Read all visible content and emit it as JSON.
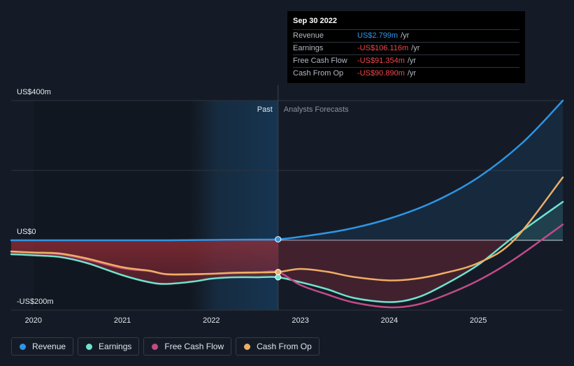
{
  "colors": {
    "background": "#151b26",
    "revenue": "#2d96e6",
    "earnings": "#6fe3cf",
    "free_cash_flow": "#c24b86",
    "cash_from_op": "#eeaf64",
    "negative": "#f3474d"
  },
  "tooltip": {
    "date": "Sep 30 2022",
    "rows": [
      {
        "label": "Revenue",
        "value": "US$2.799m",
        "unit": "/yr",
        "color": "#2d96e6"
      },
      {
        "label": "Earnings",
        "value": "-US$106.116m",
        "unit": "/yr",
        "color": "#f3474d"
      },
      {
        "label": "Free Cash Flow",
        "value": "-US$91.354m",
        "unit": "/yr",
        "color": "#f3474d"
      },
      {
        "label": "Cash From Op",
        "value": "-US$90.890m",
        "unit": "/yr",
        "color": "#f3474d"
      }
    ]
  },
  "chart_data": {
    "type": "line",
    "past_label": "Past",
    "forecast_label": "Analysts Forecasts",
    "y_tick_labels": [
      "US$400m",
      "US$0",
      "-US$200m"
    ],
    "y_tick_values": [
      400,
      0,
      -200
    ],
    "ylim": [
      -200,
      400
    ],
    "xlim": [
      2019.75,
      2025.95
    ],
    "x_tick_labels": [
      "2020",
      "2021",
      "2022",
      "2023",
      "2024",
      "2025"
    ],
    "x_tick_values": [
      2020,
      2021,
      2022,
      2023,
      2024,
      2025
    ],
    "divider_x": 2022.75,
    "series": [
      {
        "name": "Revenue",
        "color": "#2d96e6",
        "x": [
          2019.75,
          2020.5,
          2021.0,
          2021.5,
          2022.0,
          2022.5,
          2022.75,
          2023.0,
          2023.5,
          2024.0,
          2024.5,
          2025.0,
          2025.5,
          2025.95
        ],
        "y": [
          0,
          0,
          0,
          0,
          1,
          2,
          2.8,
          10,
          30,
          62,
          110,
          180,
          280,
          400
        ]
      },
      {
        "name": "Earnings",
        "color": "#6fe3cf",
        "x": [
          2019.75,
          2020.0,
          2020.3,
          2020.6,
          2021.0,
          2021.3,
          2021.5,
          2021.8,
          2022.0,
          2022.25,
          2022.5,
          2022.75,
          2023.0,
          2023.3,
          2023.6,
          2024.0,
          2024.3,
          2024.6,
          2025.0,
          2025.4,
          2025.95
        ],
        "y": [
          -40,
          -43,
          -48,
          -65,
          -100,
          -120,
          -125,
          -118,
          -110,
          -106,
          -106,
          -106,
          -120,
          -140,
          -165,
          -177,
          -165,
          -130,
          -70,
          10,
          110
        ]
      },
      {
        "name": "Free Cash Flow",
        "color": "#c24b86",
        "x": [
          2019.75,
          2020.0,
          2020.3,
          2020.6,
          2021.0,
          2021.3,
          2021.5,
          2021.8,
          2022.0,
          2022.25,
          2022.5,
          2022.75,
          2023.0,
          2023.3,
          2023.6,
          2024.0,
          2024.3,
          2024.6,
          2025.0,
          2025.4,
          2025.95
        ],
        "y": [
          -33,
          -36,
          -40,
          -55,
          -80,
          -88,
          -98,
          -98,
          -96,
          -94,
          -93,
          -91.4,
          -128,
          -155,
          -178,
          -192,
          -185,
          -160,
          -115,
          -55,
          45
        ]
      },
      {
        "name": "Cash From Op",
        "color": "#eeaf64",
        "x": [
          2019.75,
          2020.0,
          2020.3,
          2020.6,
          2021.0,
          2021.3,
          2021.5,
          2021.8,
          2022.0,
          2022.25,
          2022.5,
          2022.75,
          2023.0,
          2023.3,
          2023.6,
          2024.0,
          2024.3,
          2024.6,
          2025.0,
          2025.4,
          2025.95
        ],
        "y": [
          -32,
          -35,
          -38,
          -52,
          -77,
          -87,
          -97,
          -97,
          -96,
          -93,
          -92,
          -90.9,
          -82,
          -90,
          -105,
          -115,
          -110,
          -95,
          -65,
          0,
          180
        ]
      }
    ]
  },
  "legend": [
    {
      "label": "Revenue",
      "color": "#2d96e6"
    },
    {
      "label": "Earnings",
      "color": "#6fe3cf"
    },
    {
      "label": "Free Cash Flow",
      "color": "#c24b86"
    },
    {
      "label": "Cash From Op",
      "color": "#eeaf64"
    }
  ]
}
